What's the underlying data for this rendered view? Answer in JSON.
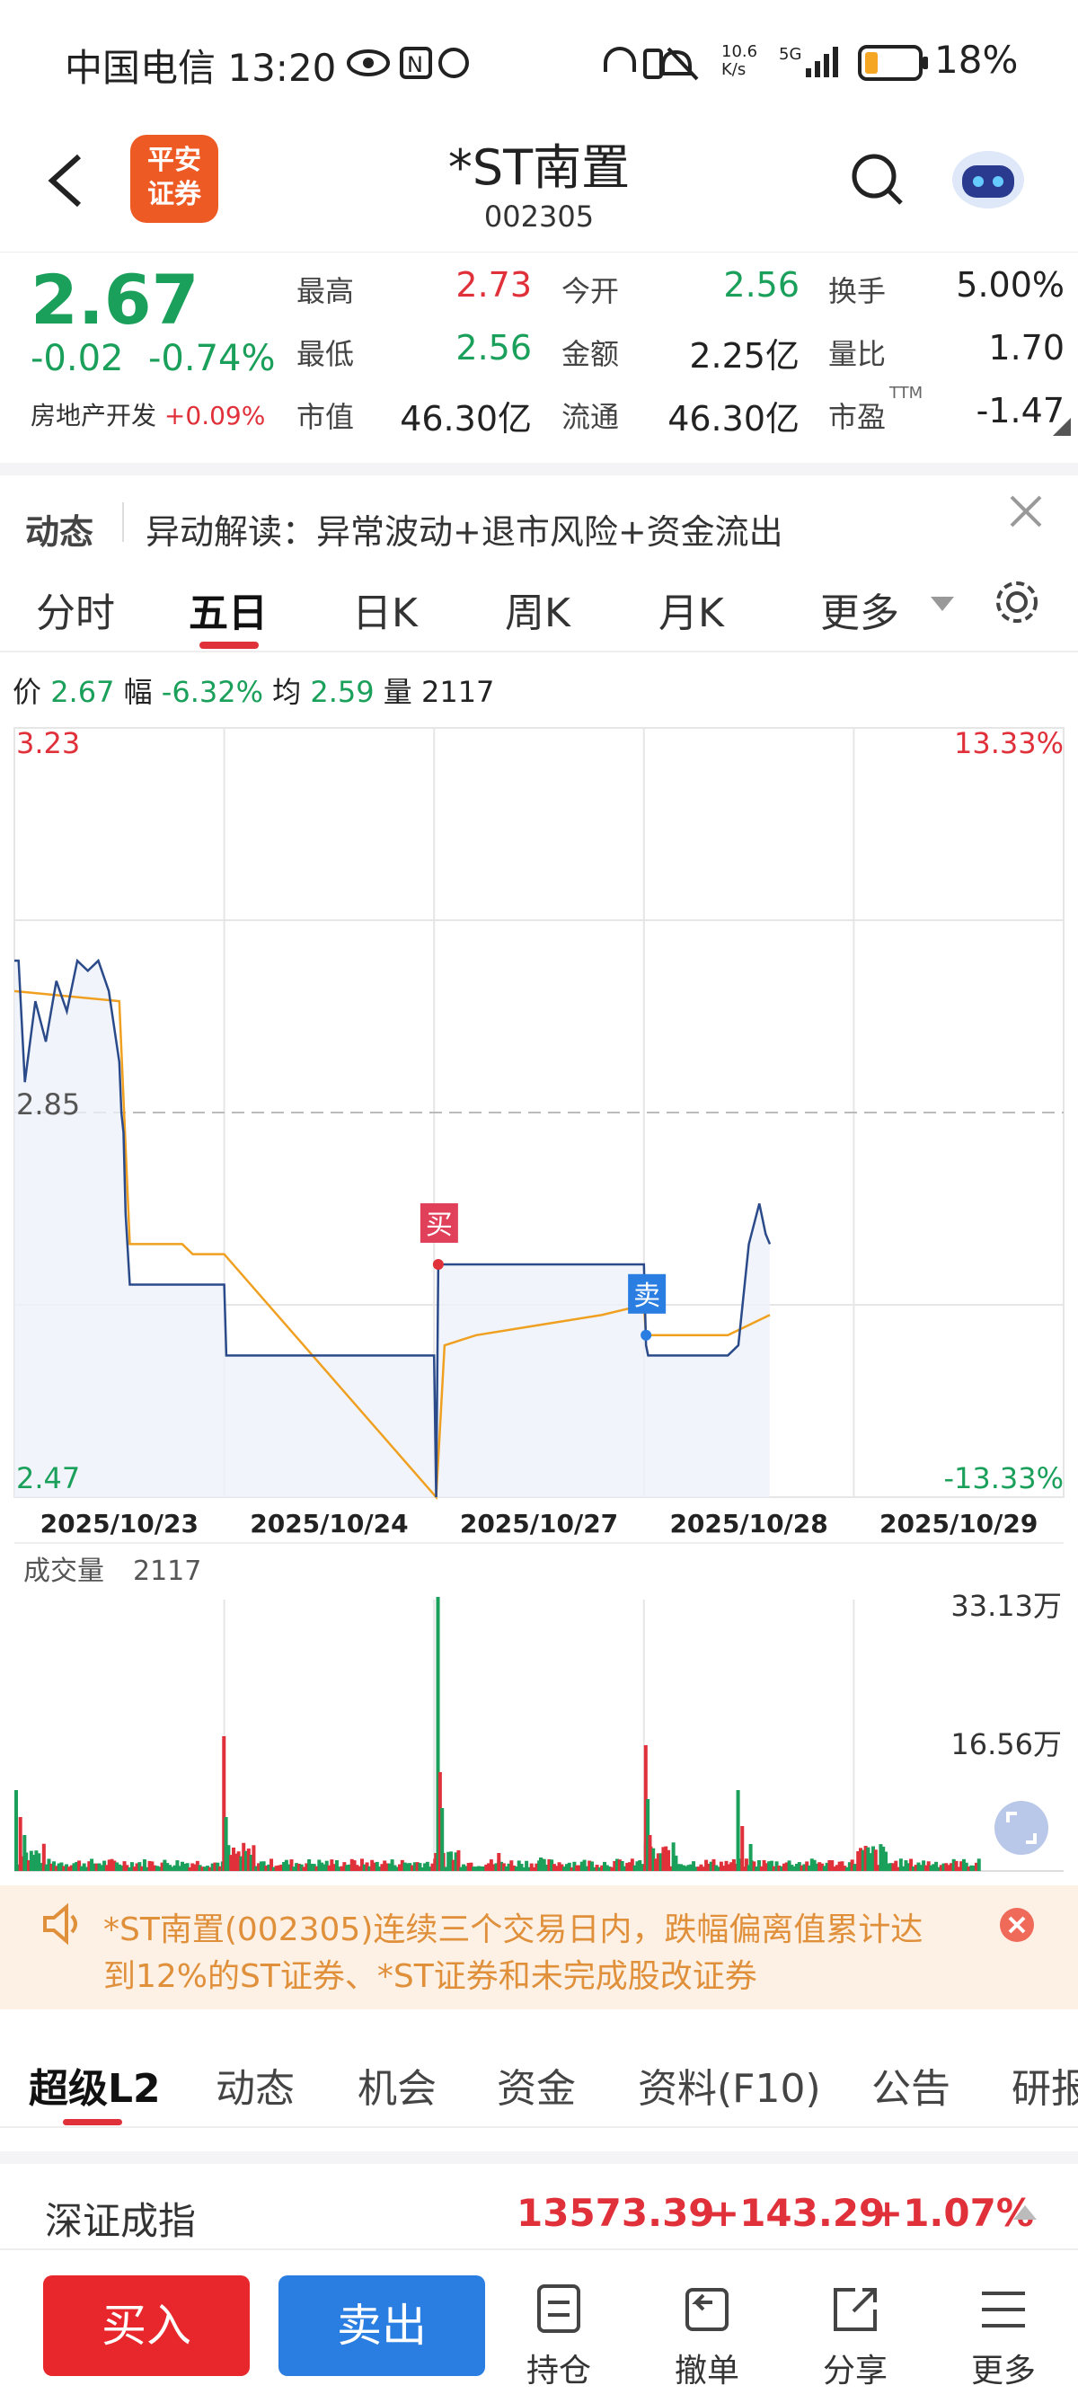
{
  "status_bar": {
    "carrier_time": "中国电信 13:20",
    "net_speed": "10.6 K/s",
    "battery": "18%"
  },
  "header": {
    "logo_text": "平安证券",
    "title": "*ST南置",
    "code": "002305"
  },
  "quote": {
    "price": "2.67",
    "change": "-0.02",
    "change_pct": "-0.74%",
    "sector": "房地产开发",
    "sector_pct": "+0.09%",
    "high_label": "最高",
    "high": "2.73",
    "open_label": "今开",
    "open": "2.56",
    "turnover_label": "换手",
    "turnover": "5.00%",
    "low_label": "最低",
    "low": "2.56",
    "amount_label": "金额",
    "amount": "2.25亿",
    "ratio_label": "量比",
    "ratio": "1.70",
    "mktcap_label": "市值",
    "mktcap": "46.30亿",
    "float_label": "流通",
    "float_cap": "46.30亿",
    "pe_label": "市盈",
    "pe_sup": "TTM",
    "pe": "-1.47"
  },
  "notice": {
    "tag": "动态",
    "text": "异动解读：异常波动+退市风险+资金流出"
  },
  "chart_tabs": [
    "分时",
    "五日",
    "日K",
    "周K",
    "月K",
    "更多"
  ],
  "info_line": {
    "price_label": "价",
    "price": "2.67",
    "amp_label": "幅",
    "amp": "-6.32%",
    "avg_label": "均",
    "avg": "2.59",
    "vol_label": "量",
    "vol": "2117"
  },
  "volume": {
    "label": "成交量",
    "value": "2117",
    "max_label": "33.13万",
    "mid_label": "16.56万"
  },
  "chart_data": {
    "type": "line",
    "x": [
      "2025/10/23",
      "2025/10/24",
      "2025/10/27",
      "2025/10/28",
      "2025/10/29"
    ],
    "y_max_label": "3.23",
    "y_min_label": "2.47",
    "y_mid_label": "2.85",
    "pct_max_label": "13.33%",
    "pct_min_label": "-13.33%",
    "ylim": [
      2.47,
      3.23
    ],
    "price_series": [
      [
        0,
        3.0
      ],
      [
        0.02,
        3.0
      ],
      [
        0.05,
        2.88
      ],
      [
        0.1,
        2.96
      ],
      [
        0.15,
        2.92
      ],
      [
        0.2,
        2.98
      ],
      [
        0.25,
        2.95
      ],
      [
        0.3,
        3.0
      ],
      [
        0.35,
        2.99
      ],
      [
        0.4,
        3.0
      ],
      [
        0.45,
        2.97
      ],
      [
        0.5,
        2.9
      ],
      [
        0.51,
        2.85
      ],
      [
        0.52,
        2.83
      ],
      [
        0.53,
        2.75
      ],
      [
        0.55,
        2.68
      ],
      [
        1.0,
        2.68
      ],
      [
        1.01,
        2.61
      ],
      [
        2.0,
        2.61
      ],
      [
        2.01,
        2.47
      ],
      [
        2.02,
        2.7
      ],
      [
        2.1,
        2.7
      ],
      [
        2.5,
        2.7
      ],
      [
        3.0,
        2.7
      ],
      [
        3.01,
        2.62
      ],
      [
        3.02,
        2.61
      ],
      [
        3.4,
        2.61
      ],
      [
        3.45,
        2.62
      ],
      [
        3.5,
        2.72
      ],
      [
        3.55,
        2.76
      ],
      [
        3.58,
        2.73
      ],
      [
        3.6,
        2.72
      ]
    ],
    "avg_series": [
      [
        0,
        2.97
      ],
      [
        0.5,
        2.96
      ],
      [
        0.55,
        2.72
      ],
      [
        0.8,
        2.72
      ],
      [
        0.85,
        2.71
      ],
      [
        1.0,
        2.71
      ],
      [
        2.01,
        2.47
      ],
      [
        2.05,
        2.62
      ],
      [
        2.2,
        2.63
      ],
      [
        2.5,
        2.64
      ],
      [
        2.8,
        2.65
      ],
      [
        3.0,
        2.66
      ],
      [
        3.01,
        2.63
      ],
      [
        3.4,
        2.63
      ],
      [
        3.5,
        2.64
      ],
      [
        3.6,
        2.65
      ]
    ],
    "buy_marker": {
      "label": "买",
      "x": 2.02,
      "y": 2.7
    },
    "sell_marker": {
      "label": "卖",
      "x": 3.01,
      "y": 2.63
    }
  },
  "alert": {
    "text1": "*ST南置(002305)连续三个交易日内，跌幅偏离值累计达",
    "text2": "到12%的ST证券、*ST证券和未完成股改证券"
  },
  "bottom_tabs": [
    "超级L2",
    "动态",
    "机会",
    "资金",
    "资料(F10)",
    "公告",
    "研报"
  ],
  "index": {
    "name": "深证成指",
    "value": "13573.39",
    "change": "+143.29",
    "pct": "+1.07%"
  },
  "actions": {
    "buy": "买入",
    "sell": "卖出",
    "hold": "持仓",
    "cancel": "撤单",
    "share": "分享",
    "more": "更多"
  }
}
